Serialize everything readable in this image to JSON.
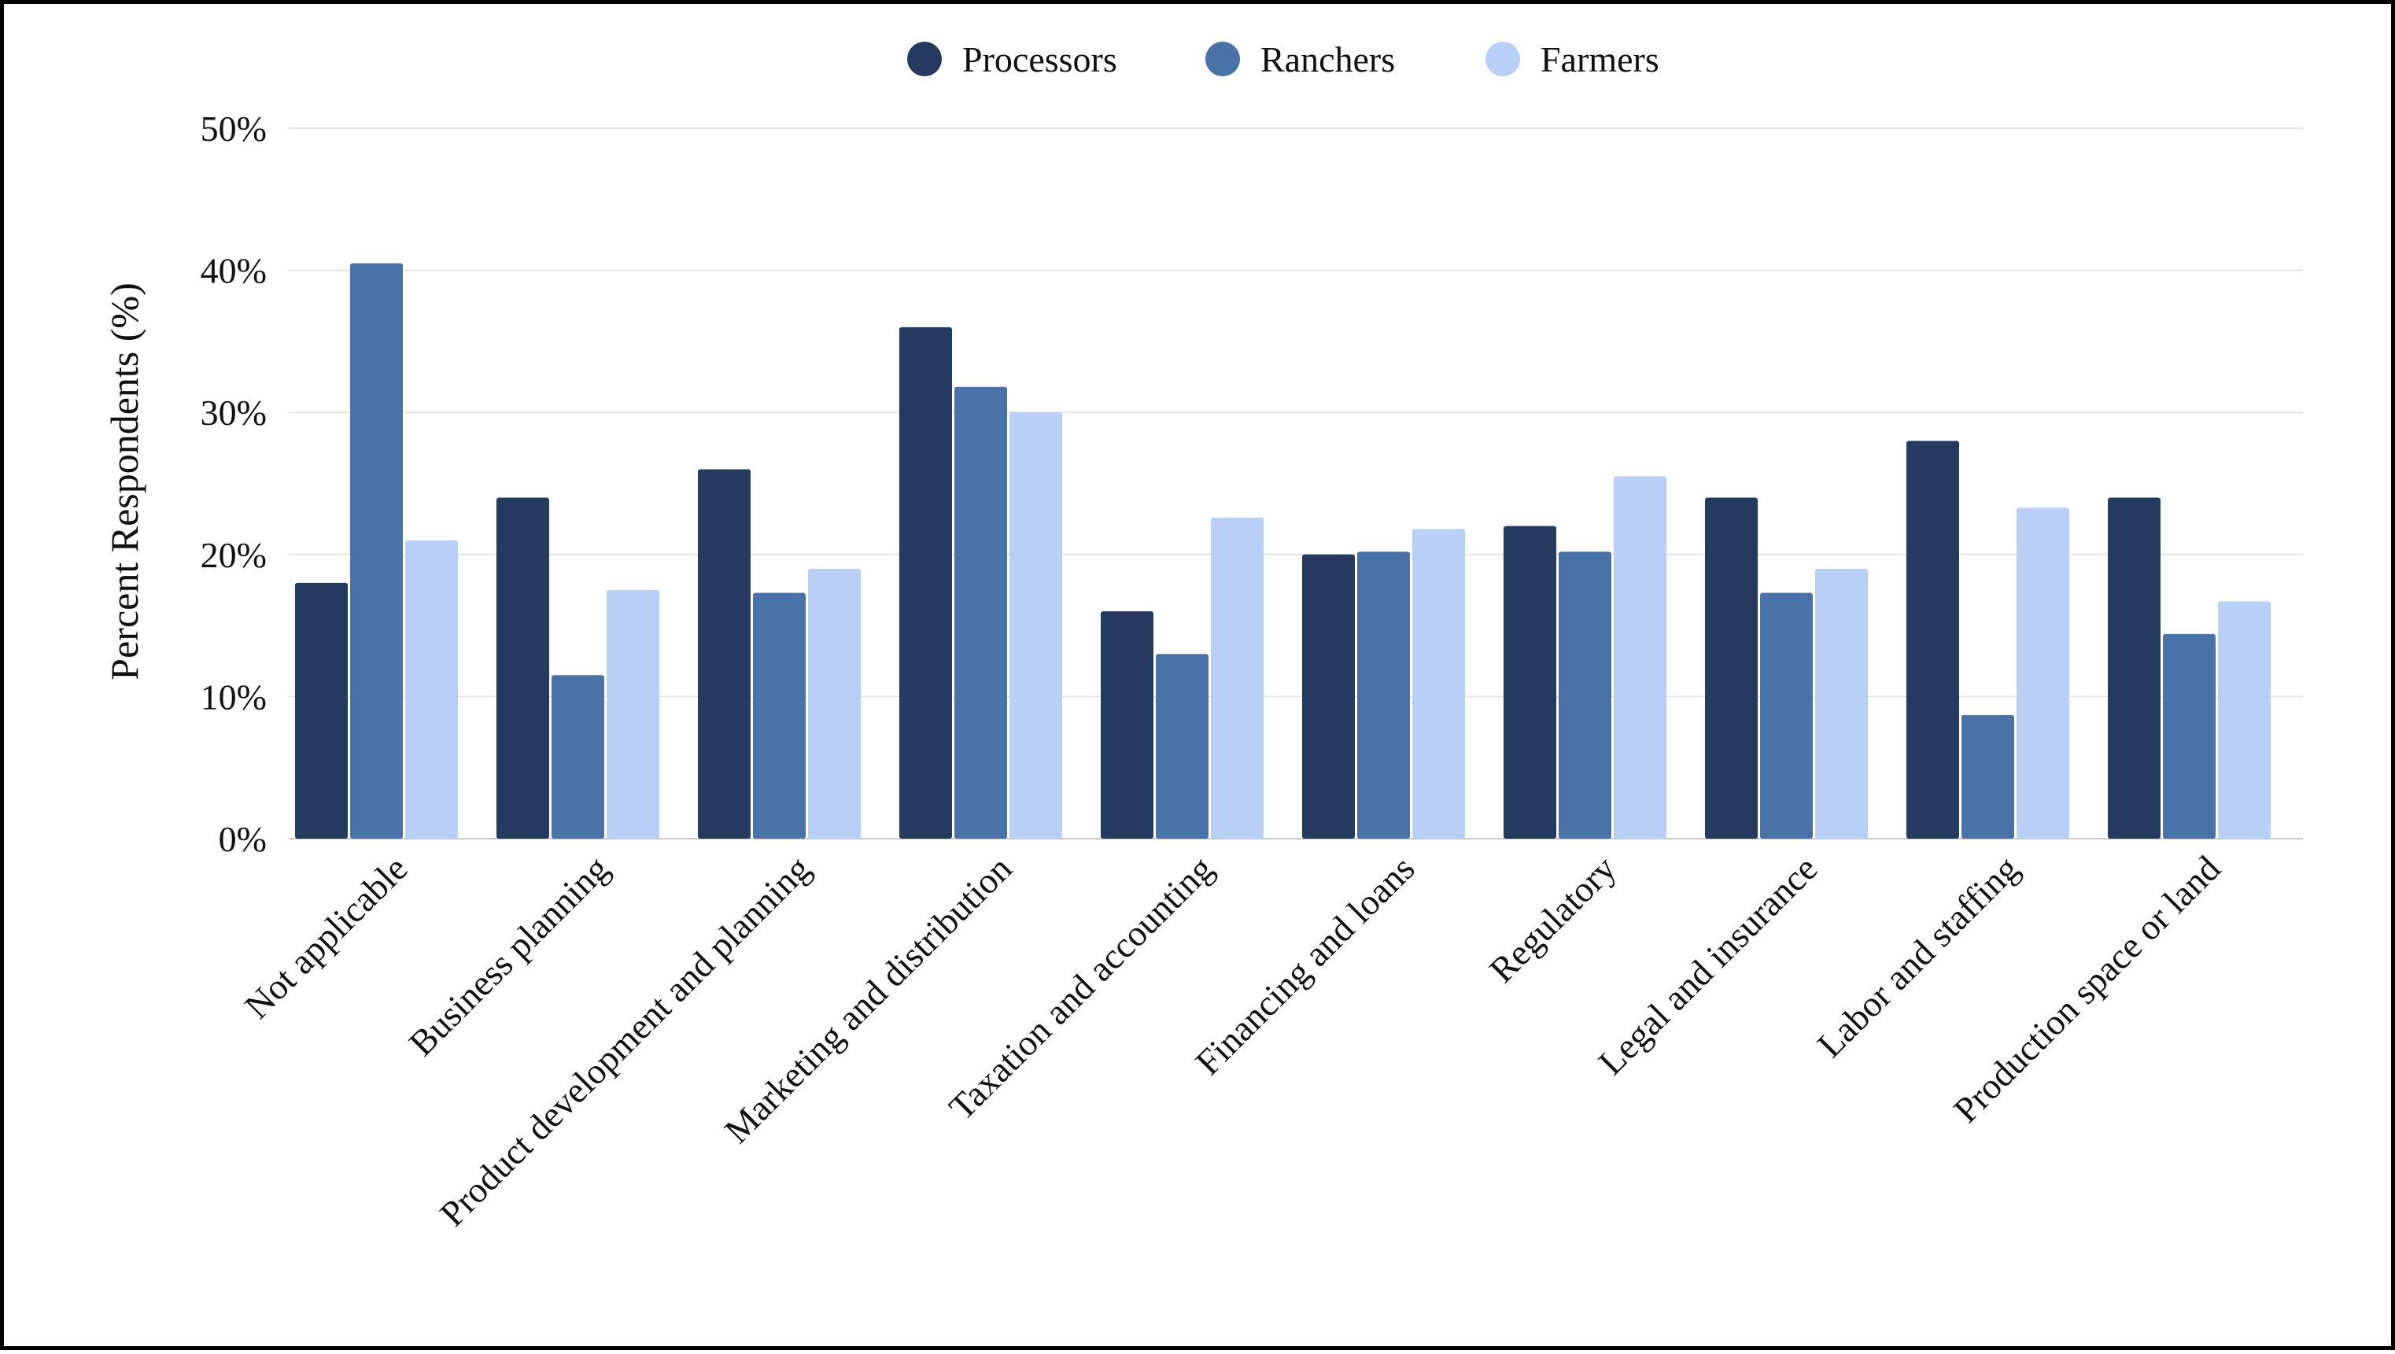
{
  "chart_data": {
    "type": "bar",
    "title": "",
    "xlabel": "",
    "ylabel": "Percent Respondents (%)",
    "ylim": [
      0,
      50
    ],
    "yticks": [
      0,
      10,
      20,
      30,
      40,
      50
    ],
    "ytick_labels": [
      "0%",
      "10%",
      "20%",
      "30%",
      "40%",
      "50%"
    ],
    "grid": "horizontal",
    "legend_position": "top-center",
    "categories": [
      "Not applicable",
      "Business planning",
      "Product development and planning",
      "Marketing and distribution",
      "Taxation and accounting",
      "Financing and loans",
      "Regulatory",
      "Legal and insurance",
      "Labor and staffing",
      "Production space or land"
    ],
    "series": [
      {
        "name": "Processors",
        "color": "#243a5e",
        "values": [
          18,
          24,
          26,
          36,
          16,
          20,
          22,
          24,
          28,
          24
        ]
      },
      {
        "name": "Ranchers",
        "color": "#4872a8",
        "values": [
          40.5,
          11.5,
          17.3,
          31.8,
          13,
          20.2,
          20.2,
          17.3,
          8.7,
          14.4
        ]
      },
      {
        "name": "Farmers",
        "color": "#b8d0f8",
        "values": [
          21,
          17.5,
          19,
          30,
          22.6,
          21.8,
          25.5,
          19,
          23.3,
          16.7
        ]
      }
    ]
  }
}
